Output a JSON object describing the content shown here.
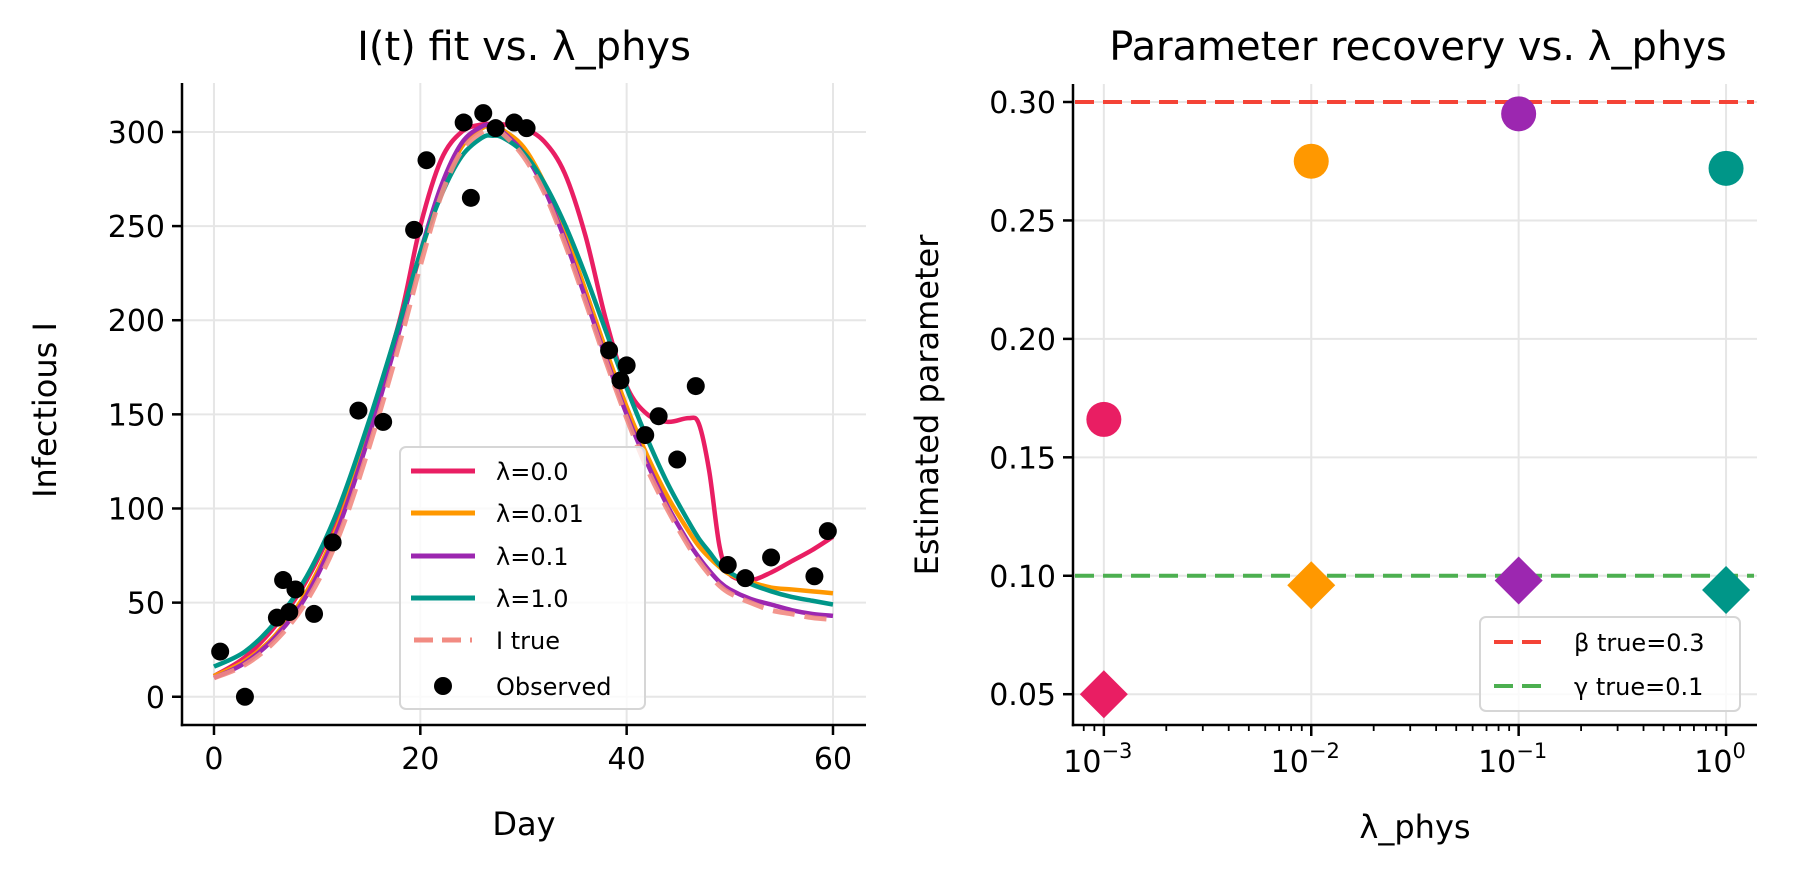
{
  "chart_data": [
    {
      "type": "line",
      "title": "I(t) fit vs. λ_phys",
      "xlabel": "Day",
      "ylabel": "Infectious I",
      "xlim": [
        -3.1,
        63.2
      ],
      "ylim": [
        -15,
        326
      ],
      "xticks": [
        0,
        20,
        40,
        60
      ],
      "xtick_labels": [
        "0",
        "20",
        "40",
        "60"
      ],
      "yticks": [
        0,
        50,
        100,
        150,
        200,
        250,
        300
      ],
      "ytick_labels": [
        "0",
        "50",
        "100",
        "150",
        "200",
        "250",
        "300"
      ],
      "grid": true,
      "legend_position": "lower-center",
      "x": [
        0,
        3,
        6,
        9,
        12,
        15,
        18,
        20,
        22,
        24,
        26,
        27,
        28,
        30,
        32,
        34,
        36,
        38,
        40,
        42,
        44,
        46,
        47,
        48,
        49,
        50,
        52,
        54,
        56,
        58,
        60
      ],
      "series": [
        {
          "name": "λ=0.0",
          "color": "#e91e63",
          "style": "solid",
          "values": [
            11,
            21,
            38,
            62,
            97,
            145,
            200,
            250,
            285,
            300,
            304,
            304,
            304,
            302,
            295,
            278,
            245,
            200,
            165,
            150,
            146,
            148,
            145,
            120,
            80,
            65,
            62,
            66,
            72,
            78,
            85
          ]
        },
        {
          "name": "λ=0.01",
          "color": "#ff9800",
          "style": "solid",
          "values": [
            11,
            19,
            33,
            56,
            91,
            140,
            196,
            235,
            268,
            292,
            302,
            303,
            301,
            292,
            273,
            247,
            216,
            184,
            154,
            128,
            106,
            88,
            80,
            74,
            69,
            65,
            61,
            58,
            57,
            56,
            55
          ]
        },
        {
          "name": "λ=0.1",
          "color": "#9c27b0",
          "style": "solid",
          "values": [
            10,
            18,
            32,
            54,
            89,
            138,
            195,
            236,
            271,
            294,
            303,
            303,
            300,
            289,
            270,
            243,
            212,
            180,
            150,
            124,
            101,
            82,
            74,
            67,
            61,
            57,
            52,
            49,
            46,
            44,
            43
          ]
        },
        {
          "name": "λ=1.0",
          "color": "#009688",
          "style": "solid",
          "values": [
            16,
            24,
            40,
            64,
            99,
            146,
            199,
            236,
            266,
            287,
            297,
            298,
            297,
            289,
            273,
            251,
            224,
            194,
            164,
            137,
            113,
            93,
            84,
            77,
            70,
            66,
            60,
            56,
            53,
            51,
            49
          ]
        },
        {
          "name": "I true",
          "color": "#f28b82",
          "style": "dashed",
          "values": [
            10,
            17,
            30,
            51,
            84,
            132,
            188,
            229,
            266,
            290,
            300,
            301,
            299,
            287,
            268,
            241,
            210,
            178,
            148,
            121,
            99,
            80,
            72,
            65,
            59,
            55,
            50,
            46,
            44,
            42,
            41
          ]
        }
      ],
      "scatter": {
        "name": "Observed",
        "color": "#000000",
        "points": [
          [
            0.6,
            24
          ],
          [
            3.0,
            0
          ],
          [
            6.1,
            42
          ],
          [
            6.7,
            62
          ],
          [
            7.3,
            45
          ],
          [
            7.9,
            57
          ],
          [
            9.7,
            44
          ],
          [
            11.5,
            82
          ],
          [
            14.0,
            152
          ],
          [
            16.4,
            146
          ],
          [
            19.4,
            248
          ],
          [
            20.6,
            285
          ],
          [
            24.2,
            305
          ],
          [
            24.9,
            265
          ],
          [
            26.1,
            310
          ],
          [
            27.3,
            302
          ],
          [
            29.1,
            305
          ],
          [
            30.3,
            302
          ],
          [
            38.3,
            184
          ],
          [
            39.4,
            168
          ],
          [
            40.0,
            176
          ],
          [
            41.8,
            139
          ],
          [
            43.1,
            149
          ],
          [
            44.9,
            126
          ],
          [
            46.7,
            165
          ],
          [
            49.8,
            70
          ],
          [
            51.5,
            63
          ],
          [
            54.0,
            74
          ],
          [
            58.2,
            64
          ],
          [
            59.5,
            88
          ]
        ]
      },
      "legend": [
        "λ=0.0",
        "λ=0.01",
        "λ=0.1",
        "λ=1.0",
        "I true",
        "Observed"
      ]
    },
    {
      "type": "scatter",
      "title": "Parameter recovery vs. λ_phys",
      "xlabel": "λ_phys",
      "ylabel": "Estimated parameter",
      "xscale": "log",
      "xlim": [
        0.00071,
        1.41
      ],
      "ylim": [
        0.037,
        0.3076
      ],
      "xticks": [
        0.001,
        0.01,
        0.1,
        1
      ],
      "xtick_labels": [
        [
          "10",
          "−3"
        ],
        [
          "10",
          "−2"
        ],
        [
          "10",
          "−1"
        ],
        [
          "10",
          "0"
        ]
      ],
      "yticks": [
        0.05,
        0.1,
        0.15,
        0.2,
        0.25,
        0.3
      ],
      "ytick_labels": [
        "0.05",
        "0.10",
        "0.15",
        "0.20",
        "0.25",
        "0.30"
      ],
      "grid": true,
      "legend_position": "lower-right",
      "lambdas": [
        0.001,
        0.01,
        0.1,
        1.0
      ],
      "colors": [
        "#e91e63",
        "#ff9800",
        "#9c27b0",
        "#009688"
      ],
      "beta_estimates": [
        0.166,
        0.275,
        0.295,
        0.272
      ],
      "gamma_estimates": [
        0.05,
        0.096,
        0.098,
        0.094
      ],
      "reference_lines": [
        {
          "name": "β true=0.3",
          "value": 0.3,
          "color": "#f44336",
          "style": "dashed"
        },
        {
          "name": "γ true=0.1",
          "value": 0.1,
          "color": "#4caf50",
          "style": "dashed"
        }
      ],
      "legend": [
        "β true=0.3",
        "γ true=0.1"
      ]
    }
  ]
}
